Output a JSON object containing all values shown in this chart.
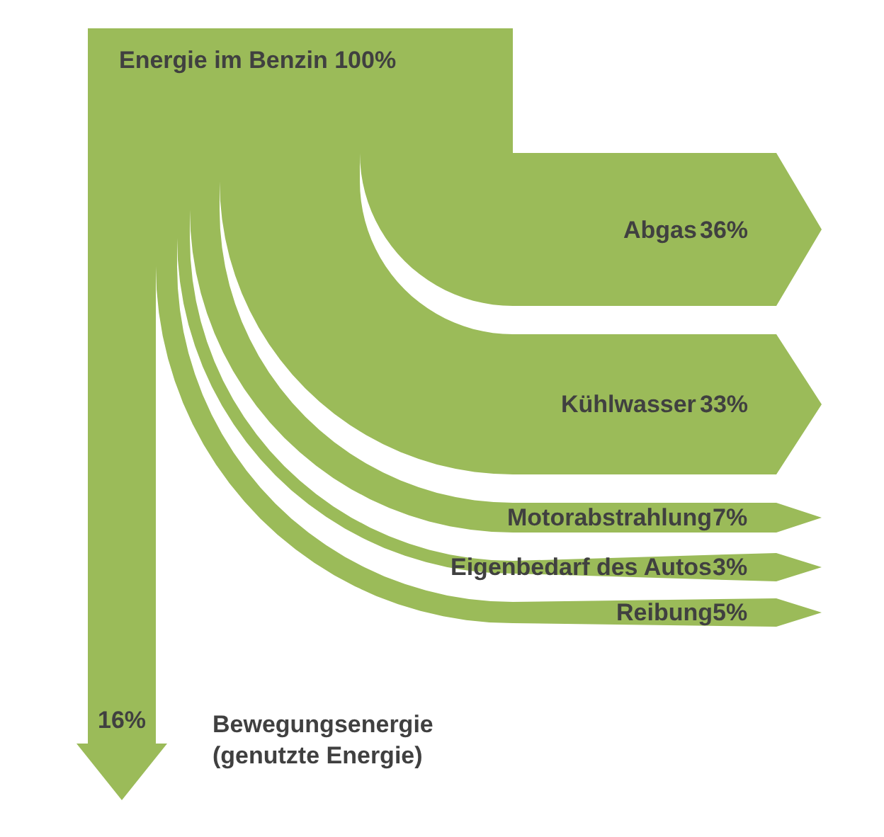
{
  "chart_data": {
    "type": "other",
    "title": "Energie im Benzin 100%",
    "categories": [
      "Abgas",
      "Kühlwasser",
      "Motorabstrahlung",
      "Eigenbedarf des Autos",
      "Reibung",
      "Bewegungsenergie\n(genutzte Energie)"
    ],
    "values": [
      36,
      33,
      7,
      3,
      5,
      16
    ],
    "value_labels": [
      "36%",
      "33%",
      "7%",
      "3%",
      "5%",
      "16%"
    ],
    "color": "#9bbb59"
  }
}
